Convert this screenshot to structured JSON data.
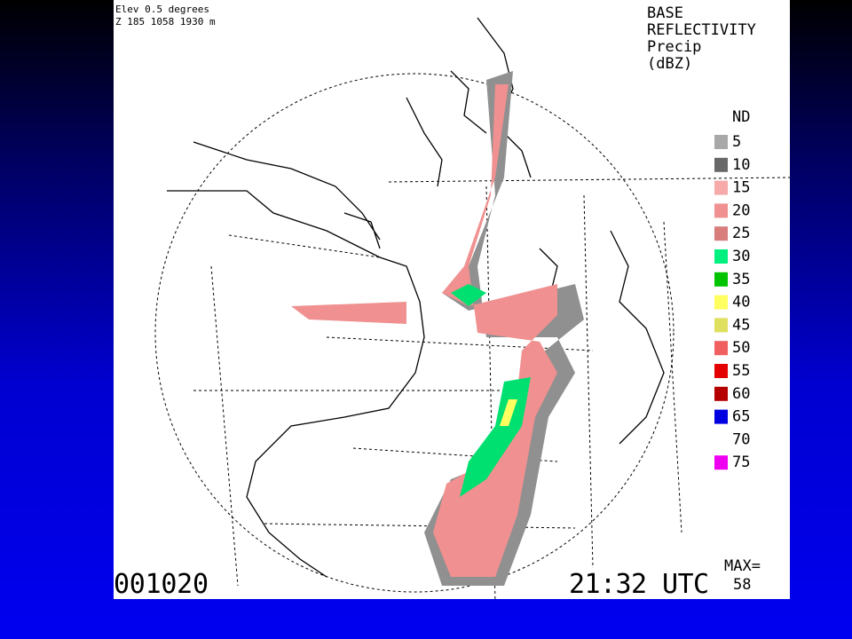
{
  "header": {
    "elevation": "Elev 0.5 degrees",
    "site": "Z 185 1058 1930 m"
  },
  "product": {
    "lines": [
      "BASE",
      "REFLECTIVITY",
      "Precip",
      "(dBZ)"
    ]
  },
  "legend": {
    "nd": "ND",
    "items": [
      {
        "value": 5,
        "color": "#a8a8a8"
      },
      {
        "value": 10,
        "color": "#686868"
      },
      {
        "value": 15,
        "color": "#f6aaaa"
      },
      {
        "value": 20,
        "color": "#f09090"
      },
      {
        "value": 25,
        "color": "#d87c7c"
      },
      {
        "value": 30,
        "color": "#00f080"
      },
      {
        "value": 35,
        "color": "#00c400"
      },
      {
        "value": 40,
        "color": "#ffff60"
      },
      {
        "value": 45,
        "color": "#e0e060"
      },
      {
        "value": 50,
        "color": "#f06060"
      },
      {
        "value": 55,
        "color": "#e40000"
      },
      {
        "value": 60,
        "color": "#b40000"
      },
      {
        "value": 65,
        "color": "#0000e0"
      },
      {
        "value": 70,
        "color": "#ffffff"
      },
      {
        "value": 75,
        "color": "#f000f0"
      }
    ]
  },
  "footer": {
    "date": "001020",
    "time": "21:32 UTC",
    "max_label": "MAX=",
    "max_value": 58
  }
}
